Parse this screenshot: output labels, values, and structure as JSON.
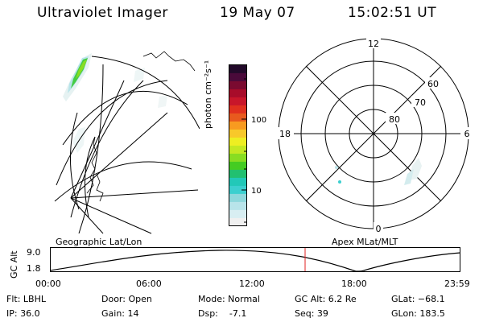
{
  "header": {
    "instrument": "Ultraviolet Imager",
    "date": "19 May 07",
    "time": "15:02:51 UT"
  },
  "geo_panel": {
    "label": "Geographic Lat/Lon"
  },
  "apex_panel": {
    "label": "Apex MLat/MLT",
    "mlt_labels": {
      "top": "12",
      "left": "18",
      "right": "6",
      "bottom": "0"
    },
    "lat_labels": [
      "60",
      "70",
      "80"
    ]
  },
  "colorbar": {
    "unit_label": "photon cm⁻²s⁻¹",
    "tick_labels": [
      "100",
      "10"
    ],
    "scale": "log",
    "colors": [
      "#f0f0f0",
      "#d8eef2",
      "#b8e4ea",
      "#8ed8dc",
      "#3ccfcf",
      "#22c8b8",
      "#22c070",
      "#44cc22",
      "#88dd22",
      "#c4e822",
      "#eeee22",
      "#f8c82a",
      "#f89a20",
      "#e85a1e",
      "#e0301e",
      "#c8162a",
      "#a80c2a",
      "#7a0a30",
      "#4a0a3a",
      "#220a2a"
    ]
  },
  "timeline": {
    "ylabel": "GC Alt",
    "y_ticks": [
      "9.0",
      "1.8"
    ],
    "x_ticks": [
      "00:00",
      "06:00",
      "12:00",
      "18:00",
      "23:59"
    ],
    "current_time_color": "#e02020"
  },
  "info": {
    "flt": "Flt: LBHL",
    "ip": "IP: 36.0",
    "door": "Door: Open",
    "gain": "Gain: 14",
    "mode": "Mode: Normal",
    "dsp": "Dsp:    -7.1",
    "gcalt": "GC Alt: 6.2 Re",
    "seq": "Seq: 39",
    "glat": "GLat: −68.1",
    "glon": "GLon: 183.5"
  }
}
